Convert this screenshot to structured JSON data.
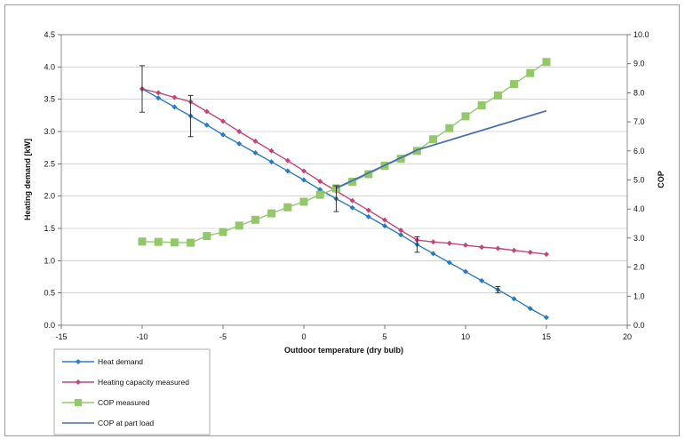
{
  "chart_data": {
    "type": "line",
    "xlabel": "Outdoor temperature (dry bulb)",
    "ylabel": "Heating demand [kW]",
    "y2label": "COP",
    "xlim": [
      -15,
      20
    ],
    "ylim": [
      0,
      4.5
    ],
    "y2lim": [
      0,
      10
    ],
    "x_ticks": [
      "-15",
      "-10",
      "-5",
      "0",
      "5",
      "10",
      "15",
      "20"
    ],
    "y_ticks": [
      "0.0",
      "0.5",
      "1.0",
      "1.5",
      "2.0",
      "2.5",
      "3.0",
      "3.5",
      "4.0",
      "4.5"
    ],
    "y2_ticks": [
      "0.0",
      "1.0",
      "2.0",
      "3.0",
      "4.0",
      "5.0",
      "6.0",
      "7.0",
      "8.0",
      "9.0",
      "10.0"
    ],
    "grid": true,
    "legend_position": "bottom-left",
    "series": [
      {
        "name": "Heat demand",
        "axis": "left",
        "color": "#2a7bbf",
        "marker": "diamond",
        "x": [
          -10,
          -9,
          -8,
          -7,
          -6,
          -5,
          -4,
          -3,
          -2,
          -1,
          0,
          1,
          2,
          3,
          4,
          5,
          6,
          7,
          8,
          9,
          10,
          11,
          12,
          13,
          14,
          15
        ],
        "y": [
          3.66,
          3.52,
          3.38,
          3.24,
          3.1,
          2.95,
          2.81,
          2.67,
          2.53,
          2.39,
          2.25,
          2.1,
          1.96,
          1.82,
          1.68,
          1.54,
          1.4,
          1.25,
          1.11,
          0.97,
          0.83,
          0.69,
          0.55,
          0.41,
          0.26,
          0.12
        ]
      },
      {
        "name": "Heating capacity measured",
        "axis": "left",
        "color": "#c4457a",
        "marker": "diamond",
        "x": [
          -10,
          -9,
          -8,
          -7,
          -6,
          -5,
          -4,
          -3,
          -2,
          -1,
          0,
          1,
          2,
          3,
          4,
          5,
          6,
          7,
          8,
          9,
          10,
          11,
          12,
          13,
          14,
          15
        ],
        "y": [
          3.66,
          3.6,
          3.53,
          3.46,
          3.31,
          3.16,
          3.0,
          2.85,
          2.7,
          2.55,
          2.39,
          2.23,
          2.08,
          1.93,
          1.78,
          1.63,
          1.47,
          1.32,
          1.29,
          1.27,
          1.24,
          1.21,
          1.19,
          1.16,
          1.13,
          1.1
        ]
      },
      {
        "name": "COP measured",
        "axis": "right",
        "color": "#93c86a",
        "marker": "square",
        "x": [
          -10,
          -9,
          -8,
          -7,
          -6,
          -5,
          -4,
          -3,
          -2,
          -1,
          0,
          1,
          2,
          3,
          4,
          5,
          6,
          7,
          8,
          9,
          10,
          11,
          12,
          13,
          14,
          15
        ],
        "y": [
          2.88,
          2.87,
          2.85,
          2.84,
          3.07,
          3.21,
          3.43,
          3.63,
          3.85,
          4.06,
          4.25,
          4.49,
          4.71,
          4.94,
          5.2,
          5.49,
          5.73,
          6.0,
          6.4,
          6.78,
          7.19,
          7.57,
          7.91,
          8.3,
          8.68,
          9.06
        ]
      },
      {
        "name": "COP at part load",
        "axis": "right",
        "color": "#4a6fb0",
        "marker": "none",
        "x": [
          2,
          7,
          15
        ],
        "y": [
          4.72,
          6.03,
          7.38
        ]
      }
    ],
    "error_bars": [
      {
        "x": -10,
        "y": 3.66,
        "low": 3.3,
        "high": 4.02
      },
      {
        "x": -7,
        "y": 3.24,
        "low": 2.92,
        "high": 3.56
      },
      {
        "x": 2,
        "y": 1.96,
        "low": 1.76,
        "high": 2.16
      },
      {
        "x": 7,
        "y": 1.25,
        "low": 1.13,
        "high": 1.37
      },
      {
        "x": 12,
        "y": 0.55,
        "low": 0.5,
        "high": 0.6
      }
    ]
  }
}
